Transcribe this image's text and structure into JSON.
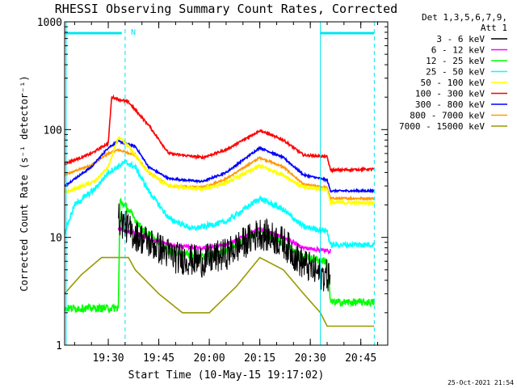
{
  "chart_data": {
    "type": "line",
    "title": "RHESSI Observing Summary Count Rates, Corrected",
    "xlabel": "Start Time (10-May-15 19:17:02)",
    "ylabel": "Corrected Count Rate (s⁻¹ detector⁻¹)",
    "y_scale": "log",
    "ylim": [
      1,
      1000
    ],
    "xlim": [
      "19:17:02",
      "20:53:00"
    ],
    "x_ticks": [
      "19:30",
      "19:45",
      "20:00",
      "20:15",
      "20:30",
      "20:45"
    ],
    "y_ticks": [
      "1",
      "10",
      "100",
      "1000"
    ],
    "grid": false,
    "legend_header": [
      "Det 1,3,5,6,7,9,",
      "Att 1"
    ],
    "legend_position": "right",
    "annotations": {
      "flag_label": "N",
      "timestamp": "25-Oct-2021 21:54"
    },
    "markers": {
      "dashed_lines": [
        "19:35:00",
        "20:49:00"
      ],
      "solid_lines": [
        "19:17:30",
        "20:33:00"
      ],
      "flag_bar_color": "#00e5ee",
      "flag_bars": [
        [
          "19:17:02",
          "19:34:00"
        ],
        [
          "20:33:00",
          "20:49:00"
        ]
      ]
    },
    "series": [
      {
        "name": "3 - 6 keV",
        "color": "#000000",
        "noise": 0.35,
        "points": [
          [
            "19:33",
            15
          ],
          [
            "19:37",
            11
          ],
          [
            "19:42",
            9
          ],
          [
            "19:50",
            6.5
          ],
          [
            "19:58",
            6
          ],
          [
            "20:05",
            7
          ],
          [
            "20:15",
            11
          ],
          [
            "20:22",
            9
          ],
          [
            "20:27",
            6
          ],
          [
            "20:33",
            4.5
          ],
          [
            "20:36",
            4.4
          ]
        ]
      },
      {
        "name": "6 - 12 keV",
        "color": "#ff00ff",
        "noise": 0.04,
        "points": [
          [
            "19:33",
            12
          ],
          [
            "19:38",
            11
          ],
          [
            "19:43",
            9.5
          ],
          [
            "19:50",
            8.3
          ],
          [
            "19:58",
            8
          ],
          [
            "20:05",
            8.5
          ],
          [
            "20:15",
            12
          ],
          [
            "20:22",
            10
          ],
          [
            "20:28",
            8
          ],
          [
            "20:35",
            7.5
          ],
          [
            "20:36",
            7.5
          ]
        ]
      },
      {
        "name": "12 - 25 keV",
        "color": "#00ff00",
        "noise": 0.08,
        "points": [
          [
            "19:17",
            2.2
          ],
          [
            "19:33",
            2.2
          ],
          [
            "19:33.5",
            22
          ],
          [
            "19:36",
            18
          ],
          [
            "19:40",
            12
          ],
          [
            "19:48",
            7.5
          ],
          [
            "19:58",
            6.5
          ],
          [
            "20:05",
            7.5
          ],
          [
            "20:15",
            12
          ],
          [
            "20:22",
            9
          ],
          [
            "20:28",
            6.5
          ],
          [
            "20:35",
            6
          ],
          [
            "20:36",
            2.5
          ],
          [
            "20:49",
            2.5
          ]
        ]
      },
      {
        "name": "25 - 50 keV",
        "color": "#00ffff",
        "noise": 0.06,
        "points": [
          [
            "19:17",
            11
          ],
          [
            "19:20",
            20
          ],
          [
            "19:26",
            28
          ],
          [
            "19:30",
            40
          ],
          [
            "19:35",
            50
          ],
          [
            "19:38",
            45
          ],
          [
            "19:42",
            27
          ],
          [
            "19:48",
            15
          ],
          [
            "19:55",
            12
          ],
          [
            "20:05",
            14
          ],
          [
            "20:15",
            23
          ],
          [
            "20:22",
            18
          ],
          [
            "20:28",
            12.5
          ],
          [
            "20:35",
            11.5
          ],
          [
            "20:36",
            8.5
          ],
          [
            "20:49",
            8.6
          ]
        ]
      },
      {
        "name": "50 - 100 keV",
        "color": "#ffff00",
        "noise": 0.04,
        "points": [
          [
            "19:17",
            26
          ],
          [
            "19:26",
            33
          ],
          [
            "19:30",
            45
          ],
          [
            "19:33",
            85
          ],
          [
            "19:36",
            70
          ],
          [
            "19:42",
            40
          ],
          [
            "19:48",
            30
          ],
          [
            "19:58",
            28
          ],
          [
            "20:05",
            32
          ],
          [
            "20:15",
            46
          ],
          [
            "20:22",
            38
          ],
          [
            "20:28",
            29
          ],
          [
            "20:35",
            28
          ],
          [
            "20:36",
            21
          ],
          [
            "20:49",
            21
          ]
        ]
      },
      {
        "name": "100 - 300 keV",
        "color": "#ff0000",
        "noise": 0.025,
        "points": [
          [
            "19:17",
            48
          ],
          [
            "19:25",
            60
          ],
          [
            "19:30",
            75
          ],
          [
            "19:31",
            200
          ],
          [
            "19:36",
            180
          ],
          [
            "19:42",
            110
          ],
          [
            "19:48",
            60
          ],
          [
            "19:58",
            55
          ],
          [
            "20:05",
            65
          ],
          [
            "20:15",
            98
          ],
          [
            "20:22",
            80
          ],
          [
            "20:28",
            58
          ],
          [
            "20:35",
            56
          ],
          [
            "20:36",
            42
          ],
          [
            "20:49",
            43
          ]
        ]
      },
      {
        "name": "300 - 800 keV",
        "color": "#0000ff",
        "noise": 0.02,
        "points": [
          [
            "19:17",
            30
          ],
          [
            "19:25",
            45
          ],
          [
            "19:30",
            68
          ],
          [
            "19:33",
            78
          ],
          [
            "19:38",
            70
          ],
          [
            "19:42",
            45
          ],
          [
            "19:48",
            35
          ],
          [
            "19:58",
            33
          ],
          [
            "20:05",
            40
          ],
          [
            "20:15",
            68
          ],
          [
            "20:22",
            55
          ],
          [
            "20:28",
            38
          ],
          [
            "20:35",
            34
          ],
          [
            "20:36",
            27
          ],
          [
            "20:49",
            27
          ]
        ]
      },
      {
        "name": "800 - 7000 keV",
        "color": "#ff9900",
        "noise": 0.02,
        "points": [
          [
            "19:17",
            38
          ],
          [
            "19:25",
            47
          ],
          [
            "19:30",
            60
          ],
          [
            "19:33",
            65
          ],
          [
            "19:38",
            58
          ],
          [
            "19:42",
            40
          ],
          [
            "19:48",
            30
          ],
          [
            "19:58",
            29
          ],
          [
            "20:05",
            35
          ],
          [
            "20:15",
            55
          ],
          [
            "20:22",
            45
          ],
          [
            "20:28",
            31
          ],
          [
            "20:35",
            29
          ],
          [
            "20:36",
            23
          ],
          [
            "20:49",
            23
          ]
        ]
      },
      {
        "name": "7000 - 15000 keV",
        "color": "#999900",
        "noise": 0.0,
        "points": [
          [
            "19:17",
            3
          ],
          [
            "19:22",
            4.5
          ],
          [
            "19:28",
            6.5
          ],
          [
            "19:36",
            6.5
          ],
          [
            "19:38",
            5
          ],
          [
            "19:45",
            3
          ],
          [
            "19:52",
            2
          ],
          [
            "20:00",
            2
          ],
          [
            "20:08",
            3.5
          ],
          [
            "20:15",
            6.5
          ],
          [
            "20:22",
            5
          ],
          [
            "20:28",
            3
          ],
          [
            "20:33",
            2
          ],
          [
            "20:35",
            1.5
          ],
          [
            "20:49",
            1.5
          ]
        ]
      }
    ]
  }
}
